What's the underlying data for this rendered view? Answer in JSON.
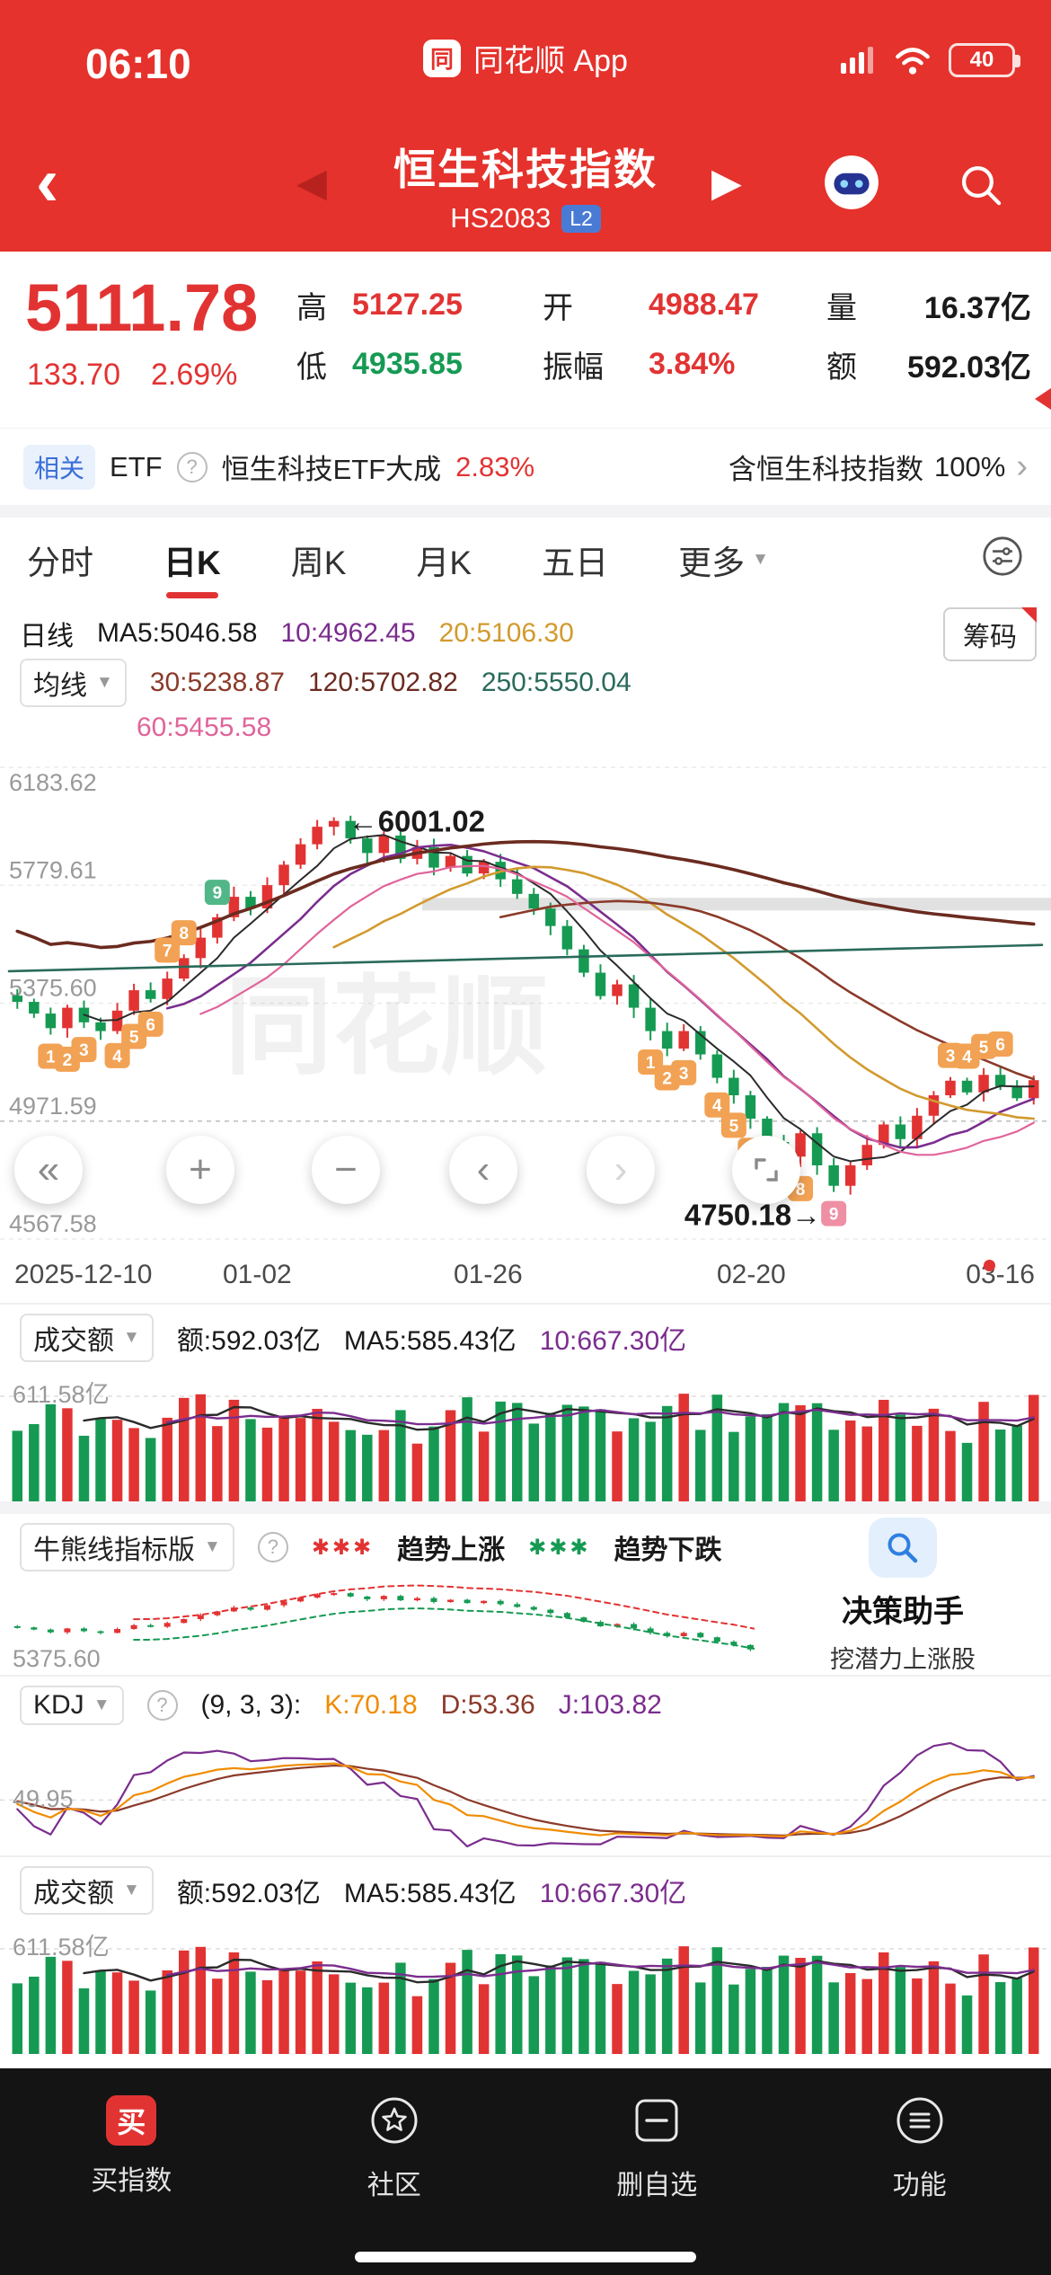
{
  "status_bar": {
    "time": "06:10",
    "app_name": "同花顺 App",
    "battery": "40"
  },
  "icons": {
    "back": "‹",
    "prev": "◀",
    "next": "▶",
    "caret_down": "▼",
    "question": "?",
    "chevron_right": "›",
    "rewind": "«",
    "plus": "+",
    "minus": "−",
    "page_left": "‹",
    "page_right": "›"
  },
  "header": {
    "title": "恒生科技指数",
    "code": "HS2083",
    "level_badge": "L2"
  },
  "quote": {
    "price": "5111.78",
    "change": "133.70",
    "change_pct": "2.69%",
    "high_label": "高",
    "high": "5127.25",
    "open_label": "开",
    "open": "4988.47",
    "volume_label": "量",
    "volume": "16.37亿",
    "low_label": "低",
    "low": "4935.85",
    "amplitude_label": "振幅",
    "amplitude": "3.84%",
    "amount_label": "额",
    "amount": "592.03亿"
  },
  "related": {
    "tag": "相关",
    "etf_label": "ETF",
    "name": "恒生科技ETF大成",
    "pct": "2.83%",
    "desc": "含恒生科技指数",
    "weight": "100%"
  },
  "tabs": {
    "items": [
      "分时",
      "日K",
      "周K",
      "月K",
      "五日"
    ],
    "more": "更多"
  },
  "ma_panel": {
    "period": "日线",
    "ma5": "MA5:5046.58",
    "ma10": "10:4962.45",
    "ma20": "20:5106.30",
    "chips_button": "筹码",
    "avg_label": "均线",
    "ma30": "30:5238.87",
    "ma120": "120:5702.82",
    "ma250": "250:5550.04",
    "ma60": "60:5455.58"
  },
  "chart": {
    "watermark": "同花顺",
    "y_labels": [
      "6183.62",
      "5779.61",
      "5375.60",
      "4971.59",
      "4567.58"
    ],
    "x_labels": [
      "2025-12-10",
      "01-02",
      "01-26",
      "02-20",
      "03-16"
    ],
    "high_annotation": "←6001.02",
    "low_annotation": "4750.18→",
    "y_min": 4567.58,
    "y_max": 6183.62,
    "closes": [
      5380,
      5340,
      5290,
      5360,
      5310,
      5280,
      5350,
      5420,
      5390,
      5460,
      5530,
      5600,
      5670,
      5740,
      5700,
      5780,
      5850,
      5920,
      5980,
      6000,
      5940,
      5890,
      5950,
      5870,
      5910,
      5840,
      5880,
      5820,
      5860,
      5800,
      5750,
      5700,
      5640,
      5560,
      5480,
      5400,
      5440,
      5360,
      5280,
      5220,
      5280,
      5200,
      5120,
      5060,
      4980,
      4900,
      4850,
      4930,
      4820,
      4750,
      4820,
      4890,
      4960,
      4910,
      4990,
      5060,
      5110,
      5070,
      5130,
      5090,
      5050,
      5111.78
    ],
    "td_badges": [
      [
        2,
        "1",
        "o",
        "b"
      ],
      [
        3,
        "2",
        "o",
        "b"
      ],
      [
        4,
        "3",
        "o",
        "b"
      ],
      [
        6,
        "4",
        "o",
        "b"
      ],
      [
        7,
        "5",
        "o",
        "b"
      ],
      [
        8,
        "6",
        "o",
        "b"
      ],
      [
        9,
        "7",
        "o",
        "a"
      ],
      [
        10,
        "8",
        "o",
        "a"
      ],
      [
        12,
        "9",
        "g",
        "a"
      ],
      [
        38,
        "1",
        "o",
        "b"
      ],
      [
        39,
        "2",
        "o",
        "b"
      ],
      [
        40,
        "3",
        "o",
        "b"
      ],
      [
        42,
        "4",
        "o",
        "b"
      ],
      [
        43,
        "5",
        "o",
        "b"
      ],
      [
        44,
        "6",
        "o",
        "b"
      ],
      [
        46,
        "7",
        "o",
        "b"
      ],
      [
        47,
        "8",
        "o",
        "b"
      ],
      [
        49,
        "9",
        "p",
        "b"
      ],
      [
        56,
        "3",
        "o",
        "a"
      ],
      [
        57,
        "4",
        "o",
        "a"
      ],
      [
        58,
        "5",
        "o",
        "a"
      ],
      [
        59,
        "6",
        "o",
        "a"
      ]
    ]
  },
  "volume": {
    "title": "成交额",
    "amount": "额:592.03亿",
    "ma5": "MA5:585.43亿",
    "ma10": "10:667.30亿",
    "y_label": "611.58亿"
  },
  "bull_bear": {
    "title": "牛熊线指标版",
    "up_stars": "✱✱✱",
    "up_label": "趋势上涨",
    "down_stars": "✱✱✱",
    "down_label": "趋势下跌",
    "y_label": "5375.60",
    "assistant_title": "决策助手",
    "assistant_sub": "挖潜力上涨股"
  },
  "kdj": {
    "title": "KDJ",
    "params": "(9, 3, 3):",
    "k": "K:70.18",
    "d": "D:53.36",
    "j": "J:103.82",
    "y_label": "49.95"
  },
  "bottom_nav": {
    "items": [
      {
        "label": "买指数",
        "badge": "买"
      },
      {
        "label": "社区"
      },
      {
        "label": "删自选"
      },
      {
        "label": "功能"
      }
    ]
  },
  "colors": {
    "header_red": "#e5322c",
    "up_red": "#e23333",
    "down_green": "#169a53",
    "ma10_purple": "#7b2d8e",
    "ma20_orange": "#d29a2e",
    "level2_blue": "#4a7bd4"
  }
}
